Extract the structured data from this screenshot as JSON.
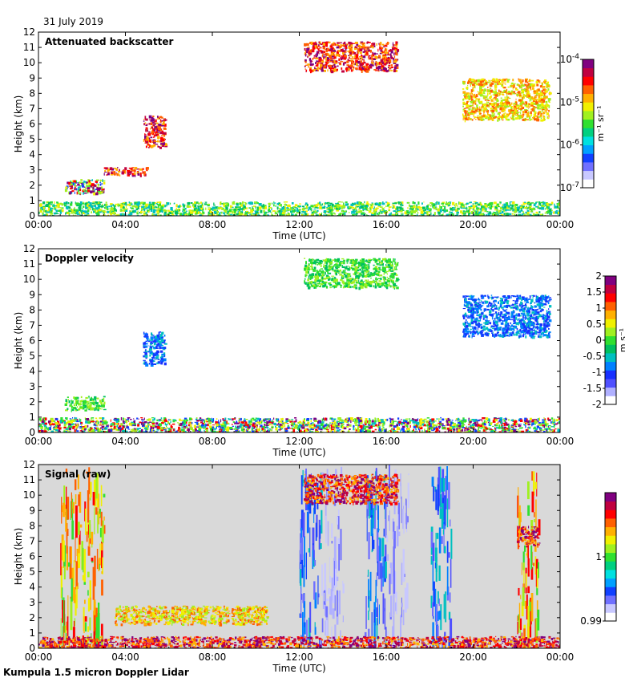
{
  "header": {
    "date": "31 July 2019"
  },
  "footer": {
    "instrument": "Kumpula 1.5 micron Doppler Lidar"
  },
  "colors": {
    "panel_bg": "#ffffff",
    "signal_bg": "#d9d9d9",
    "frame": "#000000"
  },
  "chart_data": [
    {
      "type": "heatmap",
      "title": "Attenuated backscatter",
      "xlabel": "Time (UTC)",
      "ylabel": "Height (km)",
      "xlim": [
        0,
        24
      ],
      "ylim": [
        0,
        12
      ],
      "x_ticks": [
        "00:00",
        "04:00",
        "08:00",
        "12:00",
        "16:00",
        "20:00",
        "00:00"
      ],
      "y_ticks": [
        "0",
        "1",
        "2",
        "3",
        "4",
        "5",
        "6",
        "7",
        "8",
        "9",
        "10",
        "11",
        "12"
      ],
      "colorbar": {
        "label": "m⁻¹ sr⁻¹",
        "ticks": [
          {
            "base": "10",
            "exp": "-4"
          },
          {
            "base": "10",
            "exp": "-5"
          },
          {
            "base": "10",
            "exp": "-6"
          },
          {
            "base": "10",
            "exp": "-7"
          }
        ],
        "scale": "log",
        "range": [
          1e-07,
          0.0001
        ]
      },
      "features": [
        {
          "name": "boundary layer",
          "t0": 0,
          "t1": 24,
          "h0": 0,
          "h1": 0.95,
          "level": "low"
        },
        {
          "name": "aerosol layer",
          "t0": 1.2,
          "t1": 3.0,
          "h0": 1.5,
          "h1": 2.4,
          "level": "mixed"
        },
        {
          "name": "cloud 3km",
          "t0": 3.0,
          "t1": 5.0,
          "h0": 2.7,
          "h1": 3.2,
          "level": "high"
        },
        {
          "name": "cloud 5km",
          "t0": 4.8,
          "t1": 5.8,
          "h0": 4.5,
          "h1": 6.6,
          "level": "high"
        },
        {
          "name": "cirrus 11km",
          "t0": 12.2,
          "t1": 16.5,
          "h0": 9.5,
          "h1": 11.4,
          "level": "high"
        },
        {
          "name": "cirrus 7-9km",
          "t0": 19.5,
          "t1": 23.5,
          "h0": 6.3,
          "h1": 9.0,
          "level": "mid"
        }
      ]
    },
    {
      "type": "heatmap",
      "title": "Doppler velocity",
      "xlabel": "Time (UTC)",
      "ylabel": "Height (km)",
      "xlim": [
        0,
        24
      ],
      "ylim": [
        0,
        12
      ],
      "x_ticks": [
        "00:00",
        "04:00",
        "08:00",
        "12:00",
        "16:00",
        "20:00",
        "00:00"
      ],
      "y_ticks": [
        "0",
        "1",
        "2",
        "3",
        "4",
        "5",
        "6",
        "7",
        "8",
        "9",
        "10",
        "11",
        "12"
      ],
      "colorbar": {
        "label": "m s⁻¹",
        "ticks": [
          "2",
          "1.5",
          "1",
          "0.5",
          "0",
          "-0.5",
          "-1",
          "-1.5",
          "-2"
        ],
        "scale": "linear",
        "range": [
          -2,
          2
        ]
      },
      "features": [
        {
          "name": "boundary layer turbulence",
          "t0": 0,
          "t1": 24,
          "h0": 0,
          "h1": 1.0,
          "level": "mixed"
        },
        {
          "name": "aerosol layer",
          "t0": 1.2,
          "t1": 3.0,
          "h0": 1.5,
          "h1": 2.4,
          "level": "zero"
        },
        {
          "name": "cloud 5km",
          "t0": 4.8,
          "t1": 5.8,
          "h0": 4.5,
          "h1": 6.6,
          "level": "down"
        },
        {
          "name": "cirrus 11km",
          "t0": 12.2,
          "t1": 16.5,
          "h0": 9.5,
          "h1": 11.4,
          "level": "zero"
        },
        {
          "name": "cirrus 7-9km",
          "t0": 19.5,
          "t1": 23.5,
          "h0": 6.3,
          "h1": 9.0,
          "level": "down"
        }
      ]
    },
    {
      "type": "heatmap",
      "title": "Signal (raw)",
      "xlabel": "Time (UTC)",
      "ylabel": "Height (km)",
      "xlim": [
        0,
        24
      ],
      "ylim": [
        0,
        12
      ],
      "x_ticks": [
        "00:00",
        "04:00",
        "08:00",
        "12:00",
        "16:00",
        "20:00",
        "00:00"
      ],
      "y_ticks": [
        "0",
        "1",
        "2",
        "3",
        "4",
        "5",
        "6",
        "7",
        "8",
        "9",
        "10",
        "11",
        "12"
      ],
      "colorbar": {
        "label": "",
        "ticks": [
          "1",
          "0.99"
        ],
        "scale": "linear",
        "range": [
          0.99,
          1.01
        ]
      },
      "features": [
        {
          "name": "noise band 1",
          "t0": 1.0,
          "t1": 3.0,
          "h0": 0,
          "h1": 12,
          "level": "noise-high"
        },
        {
          "name": "noise band 2",
          "t0": 12.0,
          "t1": 13.0,
          "h0": 0,
          "h1": 12,
          "level": "noise-low"
        },
        {
          "name": "noise band 3",
          "t0": 13.0,
          "t1": 14.0,
          "h0": 0,
          "h1": 12,
          "level": "noise-faint"
        },
        {
          "name": "noise band 4",
          "t0": 15.0,
          "t1": 16.0,
          "h0": 0,
          "h1": 12,
          "level": "noise-low"
        },
        {
          "name": "noise band 5",
          "t0": 16.0,
          "t1": 17.0,
          "h0": 0,
          "h1": 12,
          "level": "noise-faint"
        },
        {
          "name": "noise band 6",
          "t0": 18.0,
          "t1": 19.0,
          "h0": 0,
          "h1": 12,
          "level": "noise-low"
        },
        {
          "name": "noise band 7",
          "t0": 22.0,
          "t1": 23.0,
          "h0": 0,
          "h1": 12,
          "level": "noise-high"
        },
        {
          "name": "boundary layer",
          "t0": 0,
          "t1": 24,
          "h0": 0,
          "h1": 0.8,
          "level": "high"
        },
        {
          "name": "aerosol layer",
          "t0": 3.5,
          "t1": 10.5,
          "h0": 1.6,
          "h1": 2.8,
          "level": "mid"
        },
        {
          "name": "cirrus 11km",
          "t0": 12.2,
          "t1": 16.5,
          "h0": 9.5,
          "h1": 11.4,
          "level": "high"
        },
        {
          "name": "cirrus 7km",
          "t0": 22.0,
          "t1": 23.0,
          "h0": 6.7,
          "h1": 8.0,
          "level": "high"
        }
      ]
    }
  ]
}
